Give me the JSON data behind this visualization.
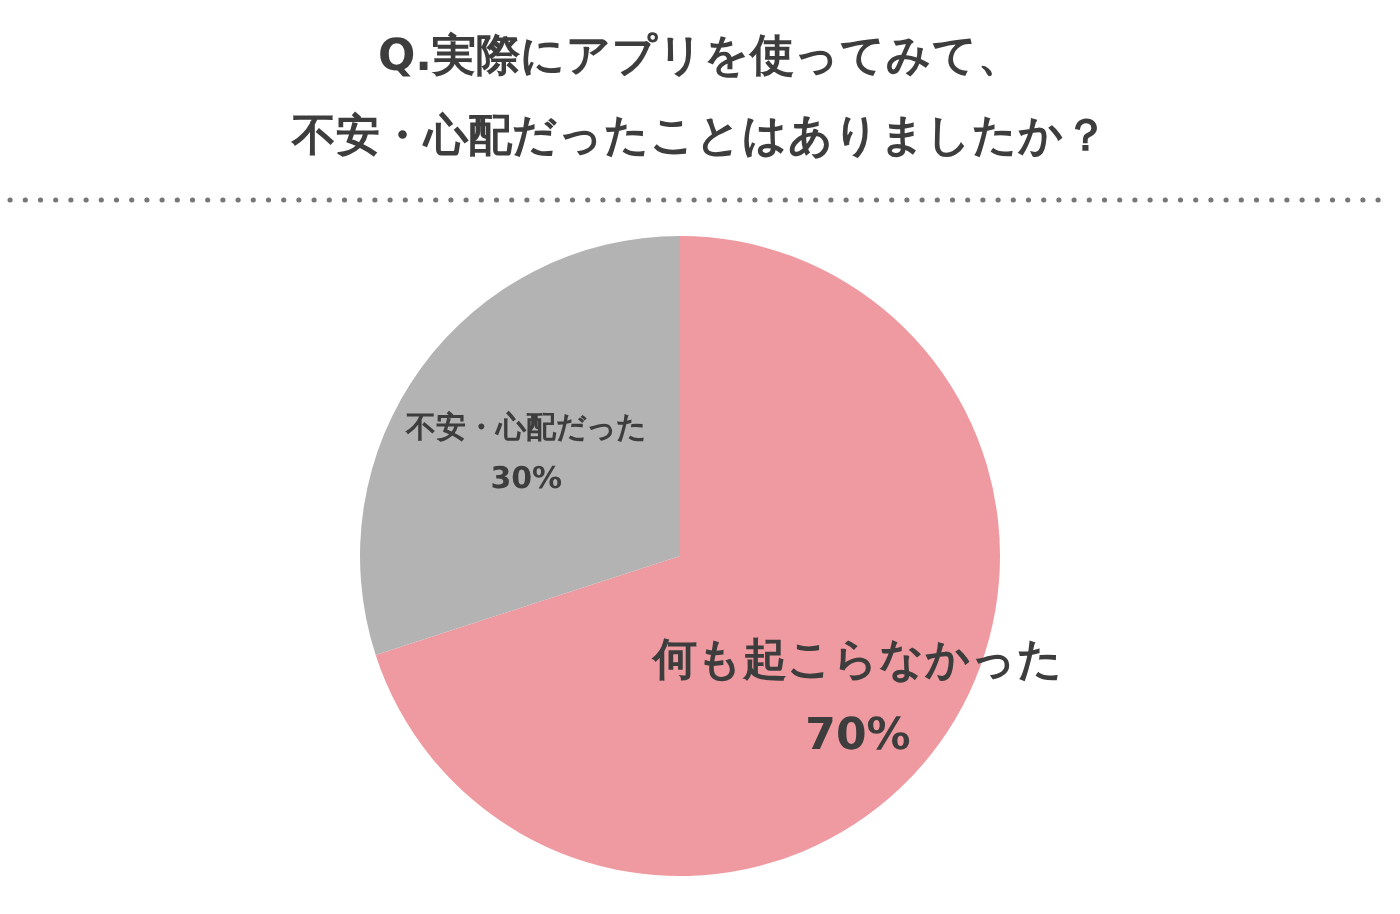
{
  "chart_data": {
    "type": "pie",
    "title": "Q.実際にアプリを使ってみて、",
    "subtitle": "不安・心配だったことはありましたか？",
    "categories": [
      "何も起こらなかった",
      "不安・心配だった"
    ],
    "values": [
      70,
      30
    ],
    "colors": [
      "#ee9aa0",
      "#b3b3b3"
    ],
    "value_labels": [
      "70%",
      "30%"
    ],
    "legend": false
  }
}
